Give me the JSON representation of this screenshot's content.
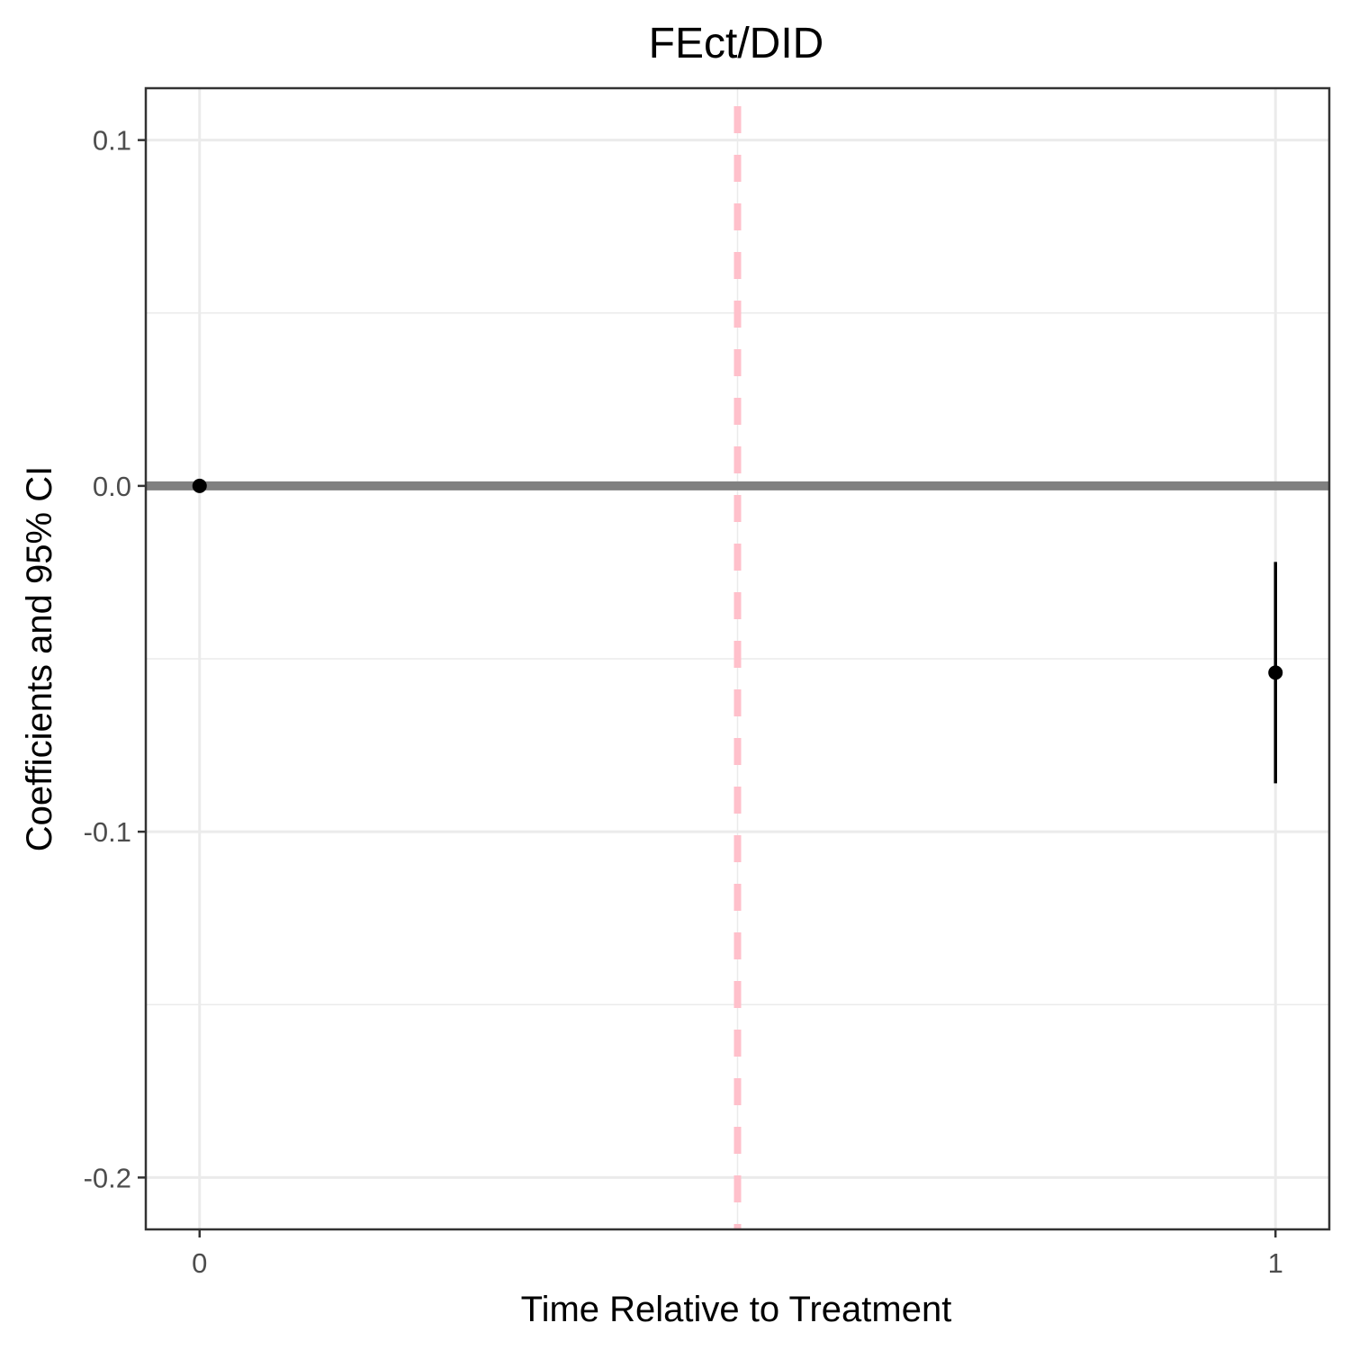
{
  "chart_data": {
    "type": "scatter",
    "title": "FEct/DID",
    "xlabel": "Time Relative to Treatment",
    "ylabel": "Coefficients and 95% CI",
    "xlim": [
      -0.05,
      1.05
    ],
    "ylim": [
      -0.215,
      0.115
    ],
    "x_ticks": [
      {
        "value": 0,
        "label": "0"
      },
      {
        "value": 1,
        "label": "1"
      }
    ],
    "y_ticks": [
      {
        "value": 0.1,
        "label": "0.1"
      },
      {
        "value": 0.0,
        "label": "0.0"
      },
      {
        "value": -0.1,
        "label": "-0.1"
      },
      {
        "value": -0.2,
        "label": "-0.2"
      }
    ],
    "y_minor_gridlines": [
      0.05,
      -0.05,
      -0.15
    ],
    "grid": true,
    "points": [
      {
        "x": 0,
        "y": 0.0,
        "ci_low": 0.0,
        "ci_high": 0.0
      },
      {
        "x": 1,
        "y": -0.054,
        "ci_low": -0.086,
        "ci_high": -0.022
      }
    ],
    "reference_lines": {
      "horizontal_y": 0,
      "vertical_x": 0.5
    },
    "colors": {
      "points": "#000000",
      "zero_line": "#808080",
      "treatment_line": "#ffc0cb",
      "grid": "#ebebeb",
      "panel_border": "#333333",
      "tick_label": "#4d4d4d"
    }
  }
}
